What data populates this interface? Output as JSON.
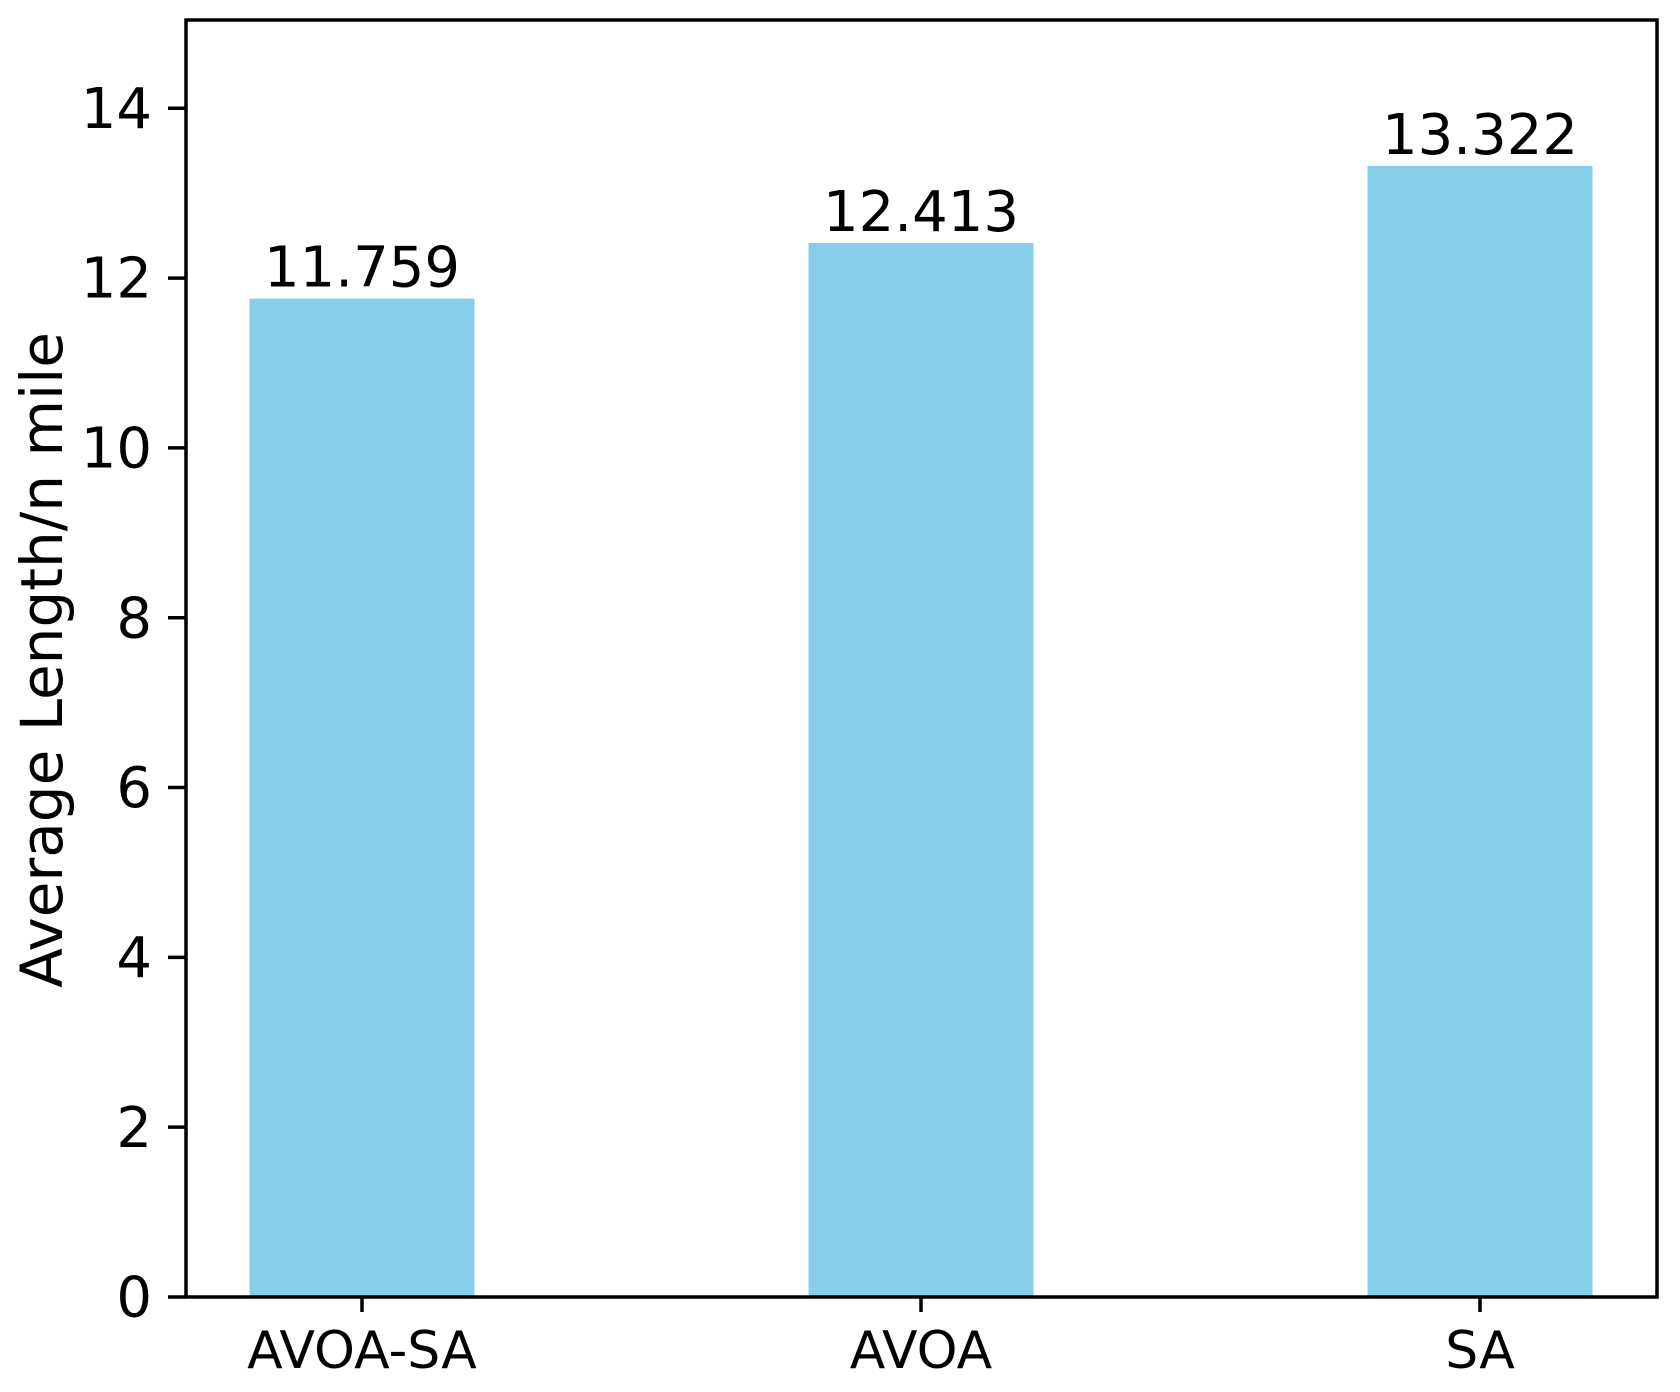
{
  "chart_data": {
    "type": "bar",
    "categories": [
      "AVOA-SA",
      "AVOA",
      "SA"
    ],
    "values": [
      11.759,
      12.413,
      13.322
    ],
    "value_labels": [
      "11.759",
      "12.413",
      "13.322"
    ],
    "ylabel": "Average Length/n mile",
    "ylim": [
      0,
      15.04
    ],
    "yticks": [
      0,
      2,
      4,
      6,
      8,
      10,
      12,
      14
    ],
    "grid": false,
    "legend": false,
    "bar_color": "#87CEEB",
    "axis_color": "#000000",
    "text_color": "#000000",
    "background_color": "#FFFFFF"
  }
}
